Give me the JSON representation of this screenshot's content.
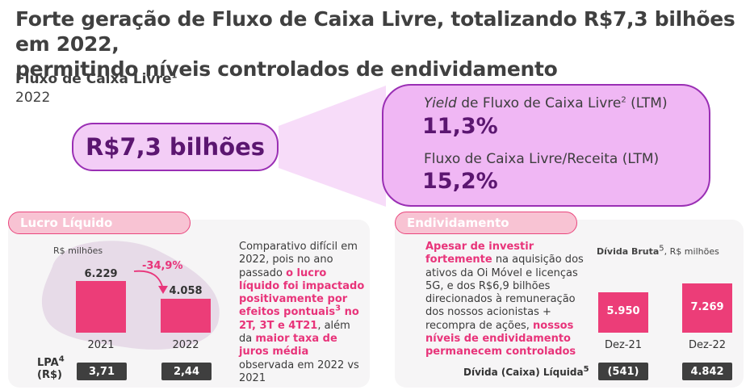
{
  "header": {
    "title_line1": "Forte geração de Fluxo de Caixa Livre, totalizando R$7,3 bilhões em 2022,",
    "title_line2": "permitindo níveis controlados de endividamento",
    "subtitle": "Fluxo de Caixa Livre",
    "subtitle_sup": "1",
    "year": "2022"
  },
  "highlight_left": {
    "value": "R$7,3 bilhões"
  },
  "highlight_right": {
    "metric1_label_italic": "Yield",
    "metric1_label_rest": " de Fluxo de Caixa Livre",
    "metric1_sup": "2",
    "metric1_suffix": " (LTM)",
    "metric1_value": "11,3%",
    "metric2_label": "Fluxo de Caixa Livre/Receita (LTM)",
    "metric2_value": "15,2%"
  },
  "lucro": {
    "header": "Lucro Líquido",
    "unit": "R$ milhões",
    "change": "-34,9%",
    "lpa_label": "LPA",
    "lpa_sup": "4",
    "lpa_unit": "(R$)",
    "paragraph": {
      "p1": "Comparativo difícil em 2022, pois no ano passado ",
      "p2": "o lucro líquido foi impactado positivamente por efeitos pontuais",
      "p2_sup": "3",
      "p3": " no 2T, 3T e 4T21",
      "p4": ", além da ",
      "p5": "maior taxa de juros média",
      "p6": " observada em 2022 vs 2021"
    }
  },
  "endividamento": {
    "header": "Endividamento",
    "chart_title": "Dívida Bruta",
    "chart_title_sup": "5",
    "chart_unit": ", R$ milhões",
    "net_label": "Dívida (Caixa) Líquida",
    "net_sup": "5",
    "paragraph": {
      "p1": "Apesar de investir fortemente",
      "p2": " na aquisição dos ativos da Oi Móvel e licenças 5G, e dos R$6,9 bilhões direcionados à remuneração dos nossos acionistas + recompra de ações, ",
      "p3": "nossos níveis de endividamento permanecem controlados"
    }
  },
  "chart_data": [
    {
      "type": "bar",
      "categories": [
        "2021",
        "2022"
      ],
      "values": [
        6229,
        4058
      ],
      "value_labels": [
        "6.229",
        "4.058"
      ],
      "secondary_values": [
        "3,71",
        "2,44"
      ],
      "ylabel": "R$ milhões",
      "colors": [
        "#ec3d78"
      ]
    },
    {
      "type": "bar",
      "categories": [
        "Dez-21",
        "Dez-22"
      ],
      "values": [
        5950,
        7269
      ],
      "value_labels": [
        "5.950",
        "7.269"
      ],
      "secondary_values": [
        "(541)",
        "4.842"
      ],
      "colors": [
        "#ec3d78"
      ]
    }
  ],
  "colors": {
    "accent": "#ec3d78",
    "purple": "#5b1670",
    "bubble": "#f0b7f4"
  }
}
